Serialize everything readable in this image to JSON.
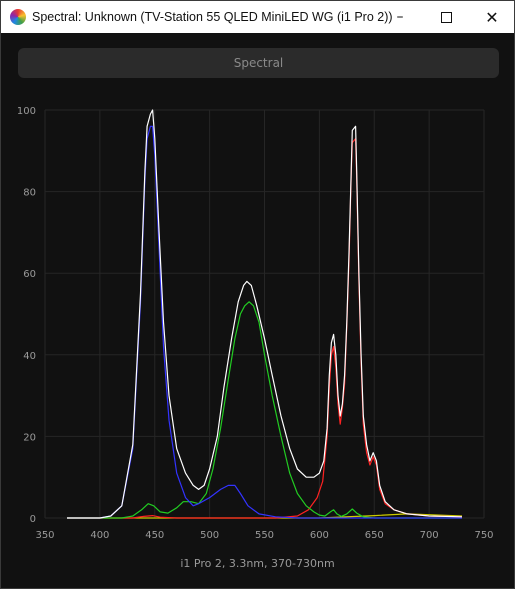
{
  "window": {
    "title": "Spectral: Unknown (TV-Station 55 QLED MiniLED WG (i1 Pro 2))",
    "min_icon": "minimize-icon",
    "max_icon": "maximize-icon",
    "close_icon": "close-icon"
  },
  "tab": {
    "label": "Spectral"
  },
  "caption": "i1 Pro 2, 3.3nm, 370-730nm",
  "chart_data": {
    "type": "line",
    "title": "",
    "xlabel": "",
    "ylabel": "",
    "xlim": [
      350,
      750
    ],
    "ylim": [
      0,
      100
    ],
    "x_ticks": [
      350,
      400,
      450,
      500,
      550,
      600,
      650,
      700,
      750
    ],
    "y_ticks": [
      0,
      20,
      40,
      60,
      80,
      100
    ],
    "grid": true,
    "series": [
      {
        "color": "#ffffff",
        "points": [
          [
            370,
            0
          ],
          [
            380,
            0
          ],
          [
            400,
            0
          ],
          [
            410,
            0.5
          ],
          [
            420,
            3
          ],
          [
            430,
            18
          ],
          [
            437,
            55
          ],
          [
            441,
            85
          ],
          [
            443,
            96
          ],
          [
            446,
            99
          ],
          [
            448,
            100
          ],
          [
            450,
            93
          ],
          [
            454,
            70
          ],
          [
            458,
            48
          ],
          [
            463,
            30
          ],
          [
            470,
            17
          ],
          [
            478,
            11
          ],
          [
            485,
            8
          ],
          [
            490,
            7
          ],
          [
            495,
            8
          ],
          [
            500,
            12
          ],
          [
            507,
            20
          ],
          [
            513,
            32
          ],
          [
            520,
            44
          ],
          [
            526,
            53
          ],
          [
            531,
            57
          ],
          [
            534,
            58
          ],
          [
            538,
            57
          ],
          [
            543,
            52
          ],
          [
            550,
            44
          ],
          [
            557,
            35
          ],
          [
            565,
            25
          ],
          [
            573,
            17
          ],
          [
            580,
            12
          ],
          [
            588,
            10
          ],
          [
            595,
            10
          ],
          [
            600,
            11
          ],
          [
            604,
            14
          ],
          [
            607,
            22
          ],
          [
            609,
            35
          ],
          [
            611,
            43
          ],
          [
            613,
            45
          ],
          [
            615,
            40
          ],
          [
            617,
            30
          ],
          [
            619,
            25
          ],
          [
            621,
            28
          ],
          [
            623,
            35
          ],
          [
            625,
            48
          ],
          [
            627,
            65
          ],
          [
            629,
            85
          ],
          [
            630,
            95
          ],
          [
            633,
            96
          ],
          [
            634,
            85
          ],
          [
            636,
            60
          ],
          [
            638,
            40
          ],
          [
            640,
            25
          ],
          [
            643,
            18
          ],
          [
            646,
            14
          ],
          [
            649,
            16
          ],
          [
            652,
            14
          ],
          [
            655,
            8
          ],
          [
            660,
            4
          ],
          [
            668,
            2
          ],
          [
            680,
            1
          ],
          [
            700,
            0.5
          ],
          [
            730,
            0.3
          ]
        ]
      },
      {
        "color": "#3333ff",
        "points": [
          [
            370,
            0
          ],
          [
            380,
            0
          ],
          [
            400,
            0
          ],
          [
            410,
            0.5
          ],
          [
            420,
            3
          ],
          [
            430,
            17
          ],
          [
            437,
            53
          ],
          [
            441,
            83
          ],
          [
            443,
            93
          ],
          [
            446,
            96
          ],
          [
            448,
            96
          ],
          [
            450,
            89
          ],
          [
            454,
            66
          ],
          [
            458,
            42
          ],
          [
            463,
            24
          ],
          [
            470,
            11
          ],
          [
            478,
            5
          ],
          [
            485,
            3
          ],
          [
            490,
            3.5
          ],
          [
            500,
            5
          ],
          [
            510,
            7
          ],
          [
            517,
            8
          ],
          [
            523,
            8
          ],
          [
            528,
            6
          ],
          [
            535,
            3
          ],
          [
            545,
            1
          ],
          [
            560,
            0.3
          ],
          [
            580,
            0
          ],
          [
            620,
            0
          ],
          [
            730,
            0
          ]
        ]
      },
      {
        "color": "#22cc22",
        "points": [
          [
            370,
            0
          ],
          [
            420,
            0
          ],
          [
            430,
            0.5
          ],
          [
            438,
            2
          ],
          [
            444,
            3.5
          ],
          [
            449,
            3
          ],
          [
            455,
            1.5
          ],
          [
            462,
            1.2
          ],
          [
            470,
            2.5
          ],
          [
            476,
            4
          ],
          [
            483,
            4
          ],
          [
            490,
            3.5
          ],
          [
            497,
            6
          ],
          [
            503,
            12
          ],
          [
            510,
            22
          ],
          [
            517,
            34
          ],
          [
            523,
            44
          ],
          [
            528,
            50
          ],
          [
            532,
            52
          ],
          [
            536,
            53
          ],
          [
            540,
            52
          ],
          [
            545,
            48
          ],
          [
            550,
            40
          ],
          [
            557,
            30
          ],
          [
            565,
            20
          ],
          [
            573,
            11
          ],
          [
            580,
            6
          ],
          [
            588,
            3
          ],
          [
            595,
            1.5
          ],
          [
            600,
            0.7
          ],
          [
            605,
            0.5
          ],
          [
            610,
            1.5
          ],
          [
            613,
            2
          ],
          [
            616,
            1
          ],
          [
            620,
            0.4
          ],
          [
            625,
            1
          ],
          [
            630,
            2.2
          ],
          [
            634,
            1.2
          ],
          [
            640,
            0.3
          ],
          [
            650,
            0
          ],
          [
            730,
            0
          ]
        ]
      },
      {
        "color": "#ff2222",
        "points": [
          [
            370,
            0
          ],
          [
            430,
            0
          ],
          [
            440,
            0.4
          ],
          [
            448,
            0.6
          ],
          [
            455,
            0.2
          ],
          [
            470,
            0
          ],
          [
            560,
            0
          ],
          [
            580,
            0.5
          ],
          [
            590,
            2
          ],
          [
            598,
            5
          ],
          [
            603,
            9
          ],
          [
            607,
            20
          ],
          [
            609,
            32
          ],
          [
            611,
            40
          ],
          [
            613,
            42
          ],
          [
            615,
            37
          ],
          [
            617,
            28
          ],
          [
            619,
            23
          ],
          [
            621,
            27
          ],
          [
            623,
            33
          ],
          [
            625,
            47
          ],
          [
            627,
            63
          ],
          [
            629,
            84
          ],
          [
            630,
            92
          ],
          [
            633,
            93
          ],
          [
            634,
            83
          ],
          [
            636,
            58
          ],
          [
            638,
            38
          ],
          [
            640,
            23
          ],
          [
            643,
            16
          ],
          [
            646,
            13
          ],
          [
            649,
            15
          ],
          [
            652,
            13
          ],
          [
            655,
            7
          ],
          [
            660,
            3.5
          ],
          [
            668,
            2
          ],
          [
            680,
            1
          ],
          [
            700,
            0.5
          ],
          [
            730,
            0.3
          ]
        ]
      },
      {
        "color": "#cccc00",
        "points": [
          [
            370,
            0
          ],
          [
            600,
            0
          ],
          [
            650,
            0.6
          ],
          [
            680,
            1
          ],
          [
            700,
            0.8
          ],
          [
            730,
            0.5
          ]
        ]
      }
    ]
  }
}
